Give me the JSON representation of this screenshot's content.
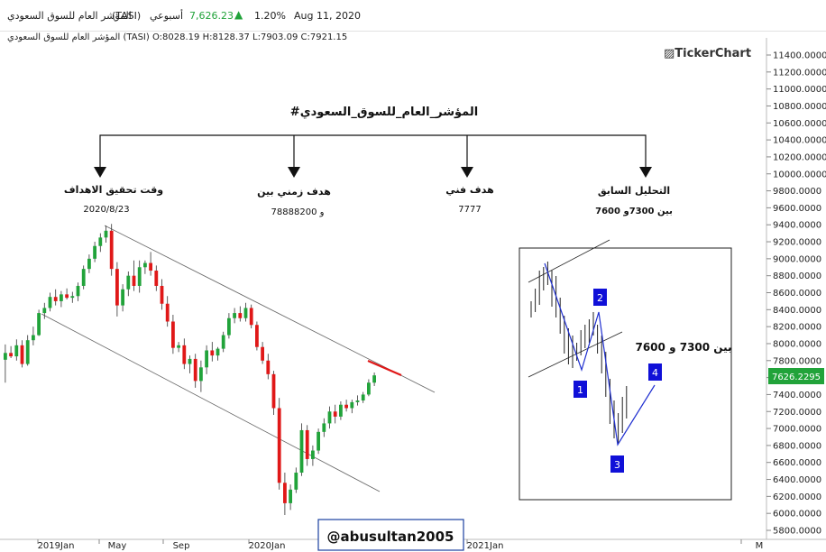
{
  "header": {
    "index_name": "المؤشر العام للسوق السعودي",
    "code": "(TASI)",
    "period": "أسبوعي",
    "last": "7,626.23",
    "change_pct": "1.20%",
    "date": "Aug 11, 2020",
    "up_color": "#21a33a"
  },
  "ohlc": {
    "name": "المؤشر العام للسوق السعودي",
    "code": "(TASI)",
    "o": "O:8028.19",
    "h": "H:8128.37",
    "l": "L:7903.09",
    "c": "C:7921.15"
  },
  "brand": "TickerChart",
  "annotations": {
    "title": "#المؤشر_العام_للسوق_السعودي",
    "col1_head": "وقت تحقيق الاهداف",
    "col1_val": "2020/8/23",
    "col2_head": "هدف زمني بين",
    "col2_val": "7888و 8200",
    "col3_head": "هدف فني",
    "col3_val": "7777",
    "col4_head": "التحليل السابق",
    "col4_val": "بين 7300و 7600"
  },
  "inset": {
    "label": "بين 7300 و 7600",
    "points": [
      "1",
      "2",
      "3",
      "4"
    ],
    "box_color": "#1010d8"
  },
  "watermark": "@abusultan2005",
  "price_tag": "7626.2295",
  "chart_data": {
    "type": "candlestick",
    "symbol": "TASI",
    "timeframe": "weekly",
    "y_axis": {
      "min": 5800,
      "max": 11400,
      "step": 200,
      "side": "right",
      "ticks": [
        "11400.0000",
        "11200.0000",
        "11000.0000",
        "10800.0000",
        "10600.0000",
        "10400.0000",
        "10200.0000",
        "10000.0000",
        "9800.0000",
        "9600.0000",
        "9400.0000",
        "9200.0000",
        "9000.0000",
        "8800.0000",
        "8600.0000",
        "8400.0000",
        "8200.0000",
        "8000.0000",
        "7800.0000",
        "7600.0000",
        "7400.0000",
        "7200.0000",
        "7000.0000",
        "6800.0000",
        "6600.0000",
        "6400.0000",
        "6200.0000",
        "6000.0000",
        "5800.0000"
      ]
    },
    "x_axis": {
      "labels": [
        "2019Jan",
        "May",
        "Sep",
        "2020Jan",
        "2021Jan",
        "M"
      ]
    },
    "colors": {
      "up": "#21a33a",
      "down": "#e01818"
    },
    "candles": [
      [
        7810,
        7990,
        7540,
        7890
      ],
      [
        7890,
        7970,
        7830,
        7850
      ],
      [
        7850,
        8050,
        7800,
        7980
      ],
      [
        7980,
        8040,
        7720,
        7760
      ],
      [
        7760,
        8100,
        7740,
        8040
      ],
      [
        8040,
        8200,
        7980,
        8100
      ],
      [
        8100,
        8400,
        8090,
        8360
      ],
      [
        8360,
        8480,
        8290,
        8420
      ],
      [
        8420,
        8600,
        8380,
        8550
      ],
      [
        8550,
        8640,
        8450,
        8500
      ],
      [
        8500,
        8620,
        8430,
        8580
      ],
      [
        8580,
        8650,
        8520,
        8540
      ],
      [
        8540,
        8610,
        8480,
        8560
      ],
      [
        8560,
        8720,
        8500,
        8680
      ],
      [
        8680,
        8920,
        8640,
        8880
      ],
      [
        8880,
        9050,
        8830,
        9000
      ],
      [
        9000,
        9200,
        8960,
        9150
      ],
      [
        9150,
        9300,
        9080,
        9250
      ],
      [
        9250,
        9390,
        9190,
        9330
      ],
      [
        9330,
        9410,
        8800,
        8880
      ],
      [
        8880,
        8960,
        8320,
        8450
      ],
      [
        8450,
        8700,
        8380,
        8640
      ],
      [
        8640,
        8850,
        8560,
        8800
      ],
      [
        8800,
        8980,
        8620,
        8680
      ],
      [
        8680,
        8980,
        8600,
        8900
      ],
      [
        8900,
        8980,
        8820,
        8950
      ],
      [
        8950,
        9080,
        8800,
        8860
      ],
      [
        8860,
        8920,
        8620,
        8680
      ],
      [
        8680,
        8760,
        8400,
        8470
      ],
      [
        8470,
        8560,
        8200,
        8260
      ],
      [
        8260,
        8340,
        7880,
        7950
      ],
      [
        7950,
        8020,
        7900,
        7980
      ],
      [
        7980,
        8060,
        7700,
        7760
      ],
      [
        7760,
        7860,
        7650,
        7820
      ],
      [
        7820,
        7880,
        7480,
        7560
      ],
      [
        7560,
        7800,
        7430,
        7720
      ],
      [
        7720,
        7980,
        7640,
        7920
      ],
      [
        7920,
        8020,
        7790,
        7860
      ],
      [
        7860,
        7960,
        7800,
        7940
      ],
      [
        7940,
        8140,
        7900,
        8100
      ],
      [
        8100,
        8360,
        8060,
        8300
      ],
      [
        8300,
        8420,
        8240,
        8360
      ],
      [
        8360,
        8440,
        8260,
        8300
      ],
      [
        8300,
        8480,
        8260,
        8420
      ],
      [
        8420,
        8460,
        8180,
        8220
      ],
      [
        8220,
        8260,
        7920,
        7960
      ],
      [
        7960,
        8020,
        7760,
        7800
      ],
      [
        7800,
        7880,
        7580,
        7640
      ],
      [
        7640,
        7680,
        7160,
        7240
      ],
      [
        7240,
        7360,
        6280,
        6360
      ],
      [
        6360,
        6480,
        5980,
        6120
      ],
      [
        6120,
        6340,
        6040,
        6280
      ],
      [
        6280,
        6540,
        6240,
        6480
      ],
      [
        6480,
        7060,
        6440,
        6980
      ],
      [
        6980,
        7040,
        6560,
        6640
      ],
      [
        6640,
        6800,
        6560,
        6740
      ],
      [
        6740,
        7000,
        6700,
        6960
      ],
      [
        6960,
        7120,
        6900,
        7060
      ],
      [
        7060,
        7260,
        7000,
        7200
      ],
      [
        7200,
        7280,
        7060,
        7140
      ],
      [
        7140,
        7320,
        7100,
        7280
      ],
      [
        7280,
        7340,
        7200,
        7240
      ],
      [
        7240,
        7340,
        7180,
        7310
      ],
      [
        7310,
        7390,
        7270,
        7330
      ],
      [
        7330,
        7430,
        7300,
        7400
      ],
      [
        7400,
        7580,
        7380,
        7540
      ],
      [
        7540,
        7660,
        7500,
        7626
      ]
    ]
  }
}
